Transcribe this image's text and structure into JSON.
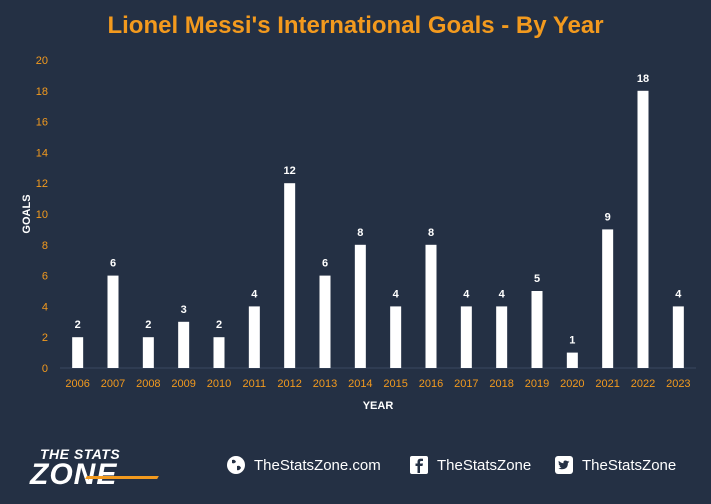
{
  "colors": {
    "background": "#243044",
    "title": "#f39a1e",
    "tick_labels": "#f39a1e",
    "bars": "#ffffff",
    "axis_titles": "#ffffff",
    "data_labels": "#ffffff",
    "gridlines": "#3a4760"
  },
  "chart_data": {
    "type": "bar",
    "title": "Lionel Messi's International Goals - By Year",
    "xlabel": "YEAR",
    "ylabel": "GOALS",
    "categories": [
      "2006",
      "2007",
      "2008",
      "2009",
      "2010",
      "2011",
      "2012",
      "2013",
      "2014",
      "2015",
      "2016",
      "2017",
      "2018",
      "2019",
      "2020",
      "2021",
      "2022",
      "2023"
    ],
    "values": [
      2,
      6,
      2,
      3,
      2,
      4,
      12,
      6,
      8,
      4,
      8,
      4,
      4,
      5,
      1,
      9,
      18,
      4
    ],
    "ylim": [
      0,
      20
    ],
    "yticks": [
      0,
      2,
      4,
      6,
      8,
      10,
      12,
      14,
      16,
      18,
      20
    ],
    "grid": false,
    "data_labels": true,
    "legend": "none"
  },
  "footer": {
    "logo_line1": "THE STATS",
    "logo_line2": "ZONE",
    "website": "TheStatsZone.com",
    "facebook": "TheStatsZone",
    "twitter": "TheStatsZone",
    "website_icon": "globe-icon",
    "facebook_icon": "facebook-icon",
    "twitter_icon": "twitter-icon"
  }
}
